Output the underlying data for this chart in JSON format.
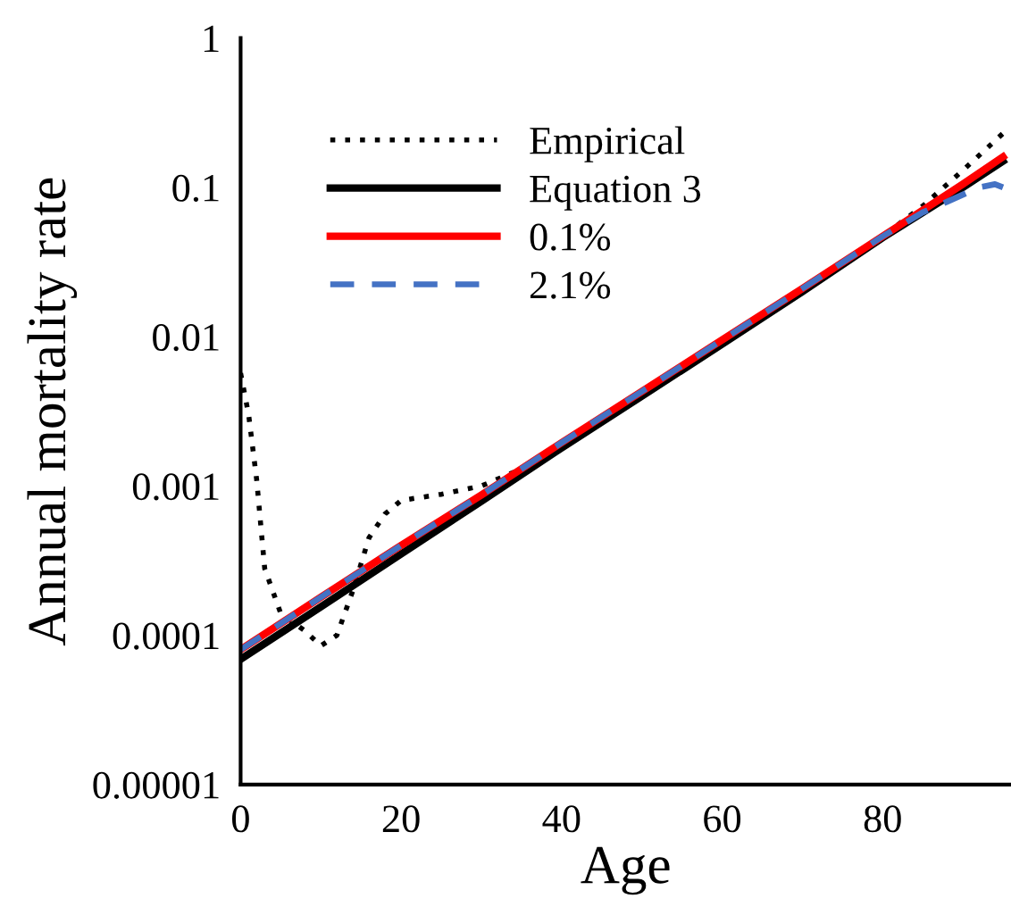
{
  "chart_data": {
    "type": "line",
    "xlabel": "Age",
    "ylabel": "Annual mortality rate",
    "log": "y",
    "xlim": [
      0,
      96
    ],
    "xticks": [
      0,
      20,
      40,
      60,
      80
    ],
    "ylim": [
      1e-05,
      1
    ],
    "yticks": [
      {
        "value": 1e-05,
        "label": "0.00001"
      },
      {
        "value": 0.0001,
        "label": "0.0001"
      },
      {
        "value": 0.001,
        "label": "0.001"
      },
      {
        "value": 0.01,
        "label": "0.01"
      },
      {
        "value": 0.1,
        "label": "0.1"
      },
      {
        "value": 1,
        "label": "1"
      }
    ],
    "grid": false,
    "legend": "top left",
    "series": [
      {
        "name": "Empirical",
        "color": "#000000",
        "line_style": "dotted",
        "x": [
          0,
          1,
          2,
          3,
          5,
          8,
          10,
          12,
          14,
          16,
          18,
          20,
          25,
          30,
          35,
          40,
          50,
          60,
          70,
          80,
          85,
          90,
          95
        ],
        "values": [
          0.0057,
          0.003,
          0.0011,
          0.00028,
          0.00014,
          0.000107,
          8.5e-05,
          0.0001,
          0.0002,
          0.00045,
          0.00065,
          0.0008,
          0.00088,
          0.001,
          0.0013,
          0.0019,
          0.0042,
          0.0092,
          0.02,
          0.047,
          0.075,
          0.13,
          0.23
        ]
      },
      {
        "name": "Equation 3",
        "color": "#000000",
        "line_style": "solid",
        "x": [
          0,
          10,
          20,
          30,
          40,
          50,
          60,
          70,
          80,
          90,
          95
        ],
        "values": [
          6.9e-05,
          0.000155,
          0.00035,
          0.00079,
          0.0018,
          0.004,
          0.0089,
          0.02,
          0.046,
          0.1,
          0.15
        ]
      },
      {
        "name": "0.1%",
        "color": "#ff0000",
        "line_style": "solid",
        "x": [
          0,
          10,
          20,
          30,
          40,
          50,
          60,
          70,
          80,
          90,
          95
        ],
        "values": [
          8e-05,
          0.00018,
          0.0004,
          0.00087,
          0.00195,
          0.0043,
          0.0095,
          0.021,
          0.047,
          0.105,
          0.16
        ]
      },
      {
        "name": "2.1%",
        "color": "#4472c4",
        "line_style": "dashed",
        "x": [
          0,
          10,
          20,
          30,
          40,
          50,
          60,
          70,
          80,
          85,
          88,
          92,
          94,
          95
        ],
        "values": [
          8e-05,
          0.00018,
          0.0004,
          0.00087,
          0.00195,
          0.0043,
          0.0095,
          0.021,
          0.047,
          0.068,
          0.08,
          0.1,
          0.105,
          0.1
        ]
      }
    ]
  }
}
